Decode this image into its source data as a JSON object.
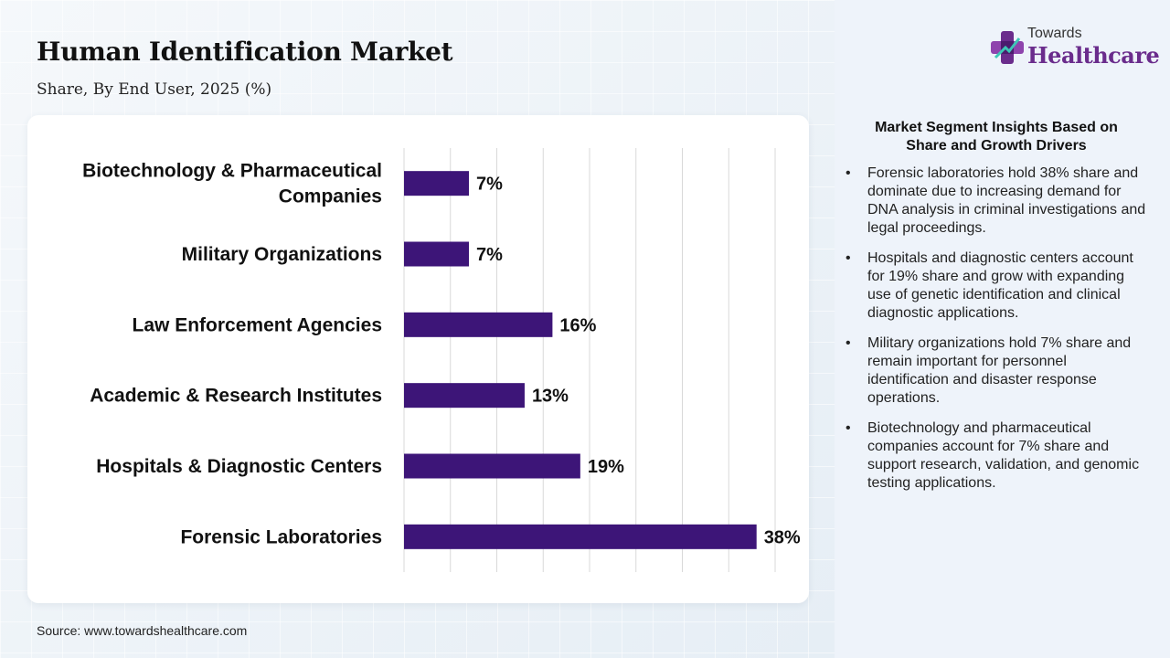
{
  "header": {
    "title": "Human Identification Market",
    "subtitle": "Share, By End User, 2025 (%)"
  },
  "logo": {
    "icon": "medical-cross-logo-icon",
    "line1": "Towards",
    "line2": "Healthcare"
  },
  "colors": {
    "bar": "#3d1578",
    "accent": "#6a2c8c",
    "grid": "#d9d9d9"
  },
  "chart_data": {
    "type": "bar",
    "orientation": "horizontal",
    "categories": [
      "Biotechnology & Pharmaceutical Companies",
      "Military Organizations",
      "Law Enforcement Agencies",
      "Academic & Research Institutes",
      "Hospitals & Diagnostic Centers",
      "Forensic Laboratories"
    ],
    "category_lines": [
      [
        "Biotechnology & Pharmaceutical",
        "Companies"
      ],
      [
        "Military Organizations"
      ],
      [
        "Law Enforcement Agencies"
      ],
      [
        "Academic & Research Institutes"
      ],
      [
        "Hospitals & Diagnostic Centers"
      ],
      [
        "Forensic Laboratories"
      ]
    ],
    "values": [
      7,
      7,
      16,
      13,
      19,
      38
    ],
    "value_labels": [
      "7%",
      "7%",
      "16%",
      "13%",
      "19%",
      "38%"
    ],
    "xlim": [
      0,
      40
    ],
    "grid": true,
    "title": "Human Identification Market",
    "subtitle": "Share, By End User, 2025 (%)"
  },
  "insights": {
    "heading_line1": "Market Segment Insights Based on",
    "heading_line2": "Share and Growth Drivers",
    "bullet_char": "•",
    "items": [
      "Forensic laboratories hold 38% share and dominate due to increasing demand for DNA analysis in criminal investigations and legal proceedings.",
      "Hospitals and diagnostic centers account for 19% share and grow with expanding use of genetic identification and clinical diagnostic applications.",
      "Military organizations hold 7% share and remain important for personnel identification and disaster response operations.",
      "Biotechnology and pharmaceutical companies account for 7% share and support research, validation, and genomic testing applications."
    ]
  },
  "footer": {
    "source": "Source: www.towardshealthcare.com"
  }
}
